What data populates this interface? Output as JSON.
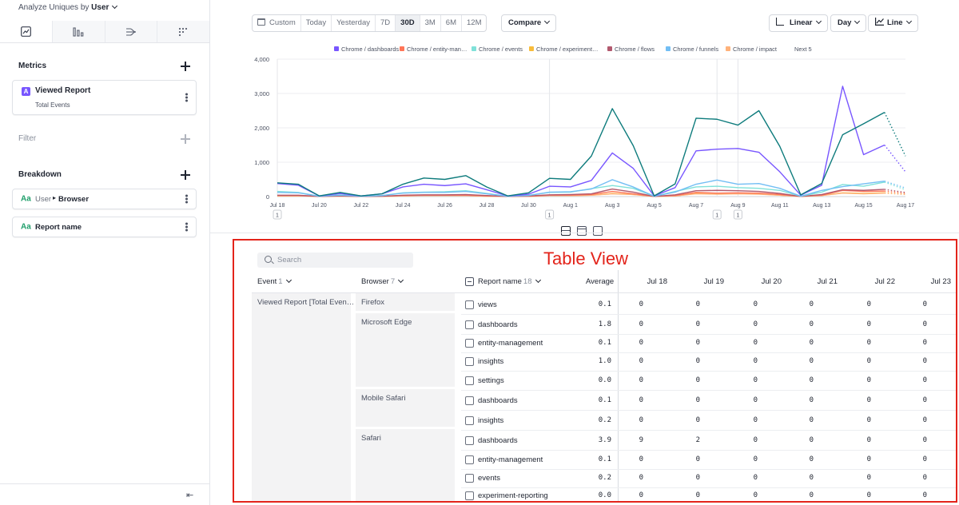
{
  "sidebar": {
    "analyze_prefix": "Analyze Uniques by",
    "analyze_value": "User",
    "tabs": [
      {
        "icon": "insights-chart-icon",
        "active": true
      },
      {
        "icon": "funnels-icon",
        "active": false
      },
      {
        "icon": "flows-icon",
        "active": false
      },
      {
        "icon": "retention-icon",
        "active": false
      }
    ],
    "metrics_title": "Metrics",
    "metric": {
      "badge": "A",
      "name": "Viewed Report",
      "sub": "Total Events"
    },
    "filter_title": "Filter",
    "breakdown_title": "Breakdown",
    "breakdowns": [
      {
        "type": "Aa",
        "prefix": "User",
        "name": "Browser"
      },
      {
        "type": "Aa",
        "prefix": "",
        "name": "Report name"
      }
    ]
  },
  "toolbar": {
    "date_ranges": [
      "Custom",
      "Today",
      "Yesterday",
      "7D",
      "30D",
      "3M",
      "6M",
      "12M"
    ],
    "active_range": "30D",
    "compare_label": "Compare",
    "scale_label": "Linear",
    "interval_label": "Day",
    "chart_type_label": "Line"
  },
  "chart_data": {
    "type": "line",
    "x": [
      "Jul 18",
      "Jul 19",
      "Jul 20",
      "Jul 21",
      "Jul 22",
      "Jul 23",
      "Jul 24",
      "Jul 25",
      "Jul 26",
      "Jul 27",
      "Jul 28",
      "Jul 29",
      "Jul 30",
      "Jul 31",
      "Aug 1",
      "Aug 2",
      "Aug 3",
      "Aug 4",
      "Aug 5",
      "Aug 6",
      "Aug 7",
      "Aug 8",
      "Aug 9",
      "Aug 10",
      "Aug 11",
      "Aug 12",
      "Aug 13",
      "Aug 14",
      "Aug 15",
      "Aug 16",
      "Aug 17"
    ],
    "x_tick_labels": [
      "Jul 18",
      "Jul 20",
      "Jul 22",
      "Jul 24",
      "Jul 26",
      "Jul 28",
      "Jul 30",
      "Aug 1",
      "Aug 3",
      "Aug 5",
      "Aug 7",
      "Aug 9",
      "Aug 11",
      "Aug 13",
      "Aug 15",
      "Aug 17"
    ],
    "y_ticks": [
      "0",
      "1,000",
      "2,000",
      "3,000",
      "4,000"
    ],
    "ylim": [
      0,
      4000
    ],
    "annotations": [
      {
        "x": "Jul 18",
        "label": "1"
      },
      {
        "x": "Jul 31",
        "label": "1"
      },
      {
        "x": "Aug 8",
        "label": "1"
      },
      {
        "x": "Aug 9",
        "label": "1"
      }
    ],
    "legend_more": "Next 5",
    "series": [
      {
        "name": "Chrome / dashboards",
        "color": "#7856ff",
        "values": [
          380,
          330,
          20,
          90,
          20,
          80,
          280,
          360,
          320,
          370,
          200,
          20,
          70,
          300,
          280,
          470,
          1270,
          820,
          20,
          260,
          1330,
          1380,
          1400,
          1290,
          720,
          40,
          330,
          3210,
          1220,
          1500,
          720
        ]
      },
      {
        "name": "Chrome / entity-man…",
        "color": "#ff7557",
        "values": [
          30,
          30,
          5,
          20,
          5,
          10,
          30,
          40,
          40,
          40,
          20,
          5,
          10,
          40,
          40,
          60,
          150,
          80,
          5,
          30,
          120,
          100,
          110,
          100,
          60,
          5,
          40,
          180,
          150,
          160,
          100
        ]
      },
      {
        "name": "Chrome / events",
        "color": "#80e1d9",
        "values": [
          150,
          120,
          10,
          50,
          10,
          30,
          110,
          130,
          140,
          170,
          90,
          10,
          40,
          120,
          130,
          230,
          320,
          240,
          10,
          150,
          280,
          300,
          260,
          240,
          180,
          10,
          130,
          350,
          300,
          420,
          200
        ]
      },
      {
        "name": "Chrome / experiment…",
        "color": "#f8bc3b",
        "values": [
          20,
          20,
          5,
          10,
          5,
          5,
          20,
          30,
          30,
          30,
          10,
          5,
          5,
          30,
          30,
          40,
          90,
          60,
          5,
          20,
          90,
          80,
          90,
          80,
          40,
          5,
          30,
          110,
          90,
          110,
          70
        ]
      },
      {
        "name": "Chrome / flows",
        "color": "#b2596e",
        "values": [
          40,
          40,
          5,
          20,
          5,
          10,
          40,
          50,
          50,
          60,
          30,
          5,
          20,
          50,
          60,
          80,
          220,
          130,
          5,
          50,
          170,
          180,
          170,
          150,
          90,
          5,
          60,
          200,
          180,
          210,
          120
        ]
      },
      {
        "name": "Chrome / funnels",
        "color": "#72bef4",
        "values": [
          120,
          110,
          10,
          40,
          10,
          30,
          100,
          120,
          120,
          150,
          80,
          10,
          30,
          130,
          140,
          220,
          490,
          280,
          10,
          130,
          360,
          480,
          360,
          380,
          240,
          10,
          180,
          290,
          370,
          450,
          250
        ]
      },
      {
        "name": "Chrome / impact",
        "color": "#ffb27a",
        "values": [
          20,
          20,
          5,
          10,
          5,
          5,
          20,
          30,
          30,
          30,
          10,
          5,
          5,
          30,
          30,
          40,
          80,
          60,
          5,
          20,
          80,
          70,
          80,
          70,
          40,
          5,
          30,
          100,
          80,
          100,
          60
        ]
      },
      {
        "name": "",
        "color": "#0d7b7c",
        "values": [
          400,
          360,
          20,
          120,
          20,
          80,
          360,
          540,
          500,
          610,
          280,
          20,
          110,
          530,
          500,
          1180,
          2560,
          1480,
          20,
          370,
          2280,
          2250,
          2080,
          2500,
          1460,
          50,
          380,
          1800,
          2120,
          2450,
          1180
        ]
      }
    ]
  },
  "table": {
    "label": "Table View",
    "search_placeholder": "Search",
    "headers": {
      "event": "Event",
      "event_count": "1",
      "browser": "Browser",
      "browser_count": "7",
      "report": "Report name",
      "report_count": "18",
      "average": "Average"
    },
    "dates": [
      "Jul 18",
      "Jul 19",
      "Jul 20",
      "Jul 21",
      "Jul 22",
      "Jul 23"
    ],
    "event_name": "Viewed Report [Total Even…",
    "browsers": [
      {
        "name": "Firefox",
        "rows": 1
      },
      {
        "name": "Microsoft Edge",
        "rows": 4
      },
      {
        "name": "Mobile Safari",
        "rows": 2
      },
      {
        "name": "Safari",
        "rows": 4
      }
    ],
    "rows": [
      {
        "name": "views",
        "avg": "0.1",
        "values": [
          "0",
          "0",
          "0",
          "0",
          "0",
          "0"
        ]
      },
      {
        "name": "dashboards",
        "avg": "1.8",
        "values": [
          "0",
          "0",
          "0",
          "0",
          "0",
          "0"
        ]
      },
      {
        "name": "entity-management",
        "avg": "0.1",
        "values": [
          "0",
          "0",
          "0",
          "0",
          "0",
          "0"
        ]
      },
      {
        "name": "insights",
        "avg": "1.0",
        "values": [
          "0",
          "0",
          "0",
          "0",
          "0",
          "0"
        ]
      },
      {
        "name": "settings",
        "avg": "0.0",
        "values": [
          "0",
          "0",
          "0",
          "0",
          "0",
          "0"
        ]
      },
      {
        "name": "dashboards",
        "avg": "0.1",
        "values": [
          "0",
          "0",
          "0",
          "0",
          "0",
          "0"
        ]
      },
      {
        "name": "insights",
        "avg": "0.2",
        "values": [
          "0",
          "0",
          "0",
          "0",
          "0",
          "0"
        ]
      },
      {
        "name": "dashboards",
        "avg": "3.9",
        "values": [
          "9",
          "2",
          "0",
          "0",
          "0",
          "0"
        ]
      },
      {
        "name": "entity-management",
        "avg": "0.1",
        "values": [
          "0",
          "0",
          "0",
          "0",
          "0",
          "0"
        ]
      },
      {
        "name": "events",
        "avg": "0.2",
        "values": [
          "0",
          "0",
          "0",
          "0",
          "0",
          "0"
        ]
      },
      {
        "name": "experiment-reporting",
        "avg": "0.0",
        "values": [
          "0",
          "0",
          "0",
          "0",
          "0",
          "0"
        ]
      }
    ]
  }
}
